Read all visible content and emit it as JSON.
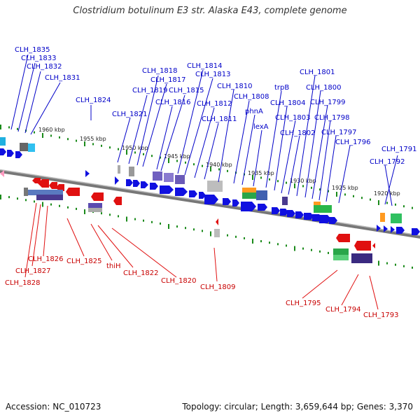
{
  "title": "Clostridium botulinum E3 str. Alaska E43, complete genome",
  "footer": {
    "accession": "Accession: NC_010723",
    "summary": "Topology: circular; Length: 3,659,644 bp; Genes: 3,370"
  },
  "colors": {
    "forward": "#1010e0",
    "reverse": "#e01010",
    "top_label": "#0000c8",
    "bottom_label": "#c80000",
    "tick": "#1a8a1a",
    "backbone": "#888888"
  },
  "kbp_marks": [
    "1960 kbp",
    "1955 kbp",
    "1950 kbp",
    "1945 kbp",
    "1940 kbp",
    "1935 kbp",
    "1930 kbp",
    "1925 kbp",
    "1920 kbp"
  ],
  "top_labels": [
    "CLH_1835",
    "CLH_1833",
    "CLH_1832",
    "CLH_1831",
    "CLH_1824",
    "CLH_1821",
    "CLH_1818",
    "CLH_1817",
    "CLH_1819",
    "CLH_1815",
    "CLH_1816",
    "CLH_1814",
    "CLH_1813",
    "CLH_1812",
    "CLH_1811",
    "CLH_1810",
    "CLH_1808",
    "phnA",
    "lexA",
    "trpB",
    "CLH_1804",
    "CLH_1803",
    "CLH_1802",
    "CLH_1801",
    "CLH_1800",
    "CLH_1799",
    "CLH_1798",
    "CLH_1797",
    "CLH_1796",
    "CLH_1791",
    "CLH_1792"
  ],
  "bottom_labels": [
    "CLH_1828",
    "CLH_1827",
    "CLH_1826",
    "CLH_1825",
    "thiH",
    "CLH_1822",
    "CLH_1820",
    "CLH_1809",
    "CLH_1795",
    "CLH_1794",
    "CLH_1793"
  ]
}
